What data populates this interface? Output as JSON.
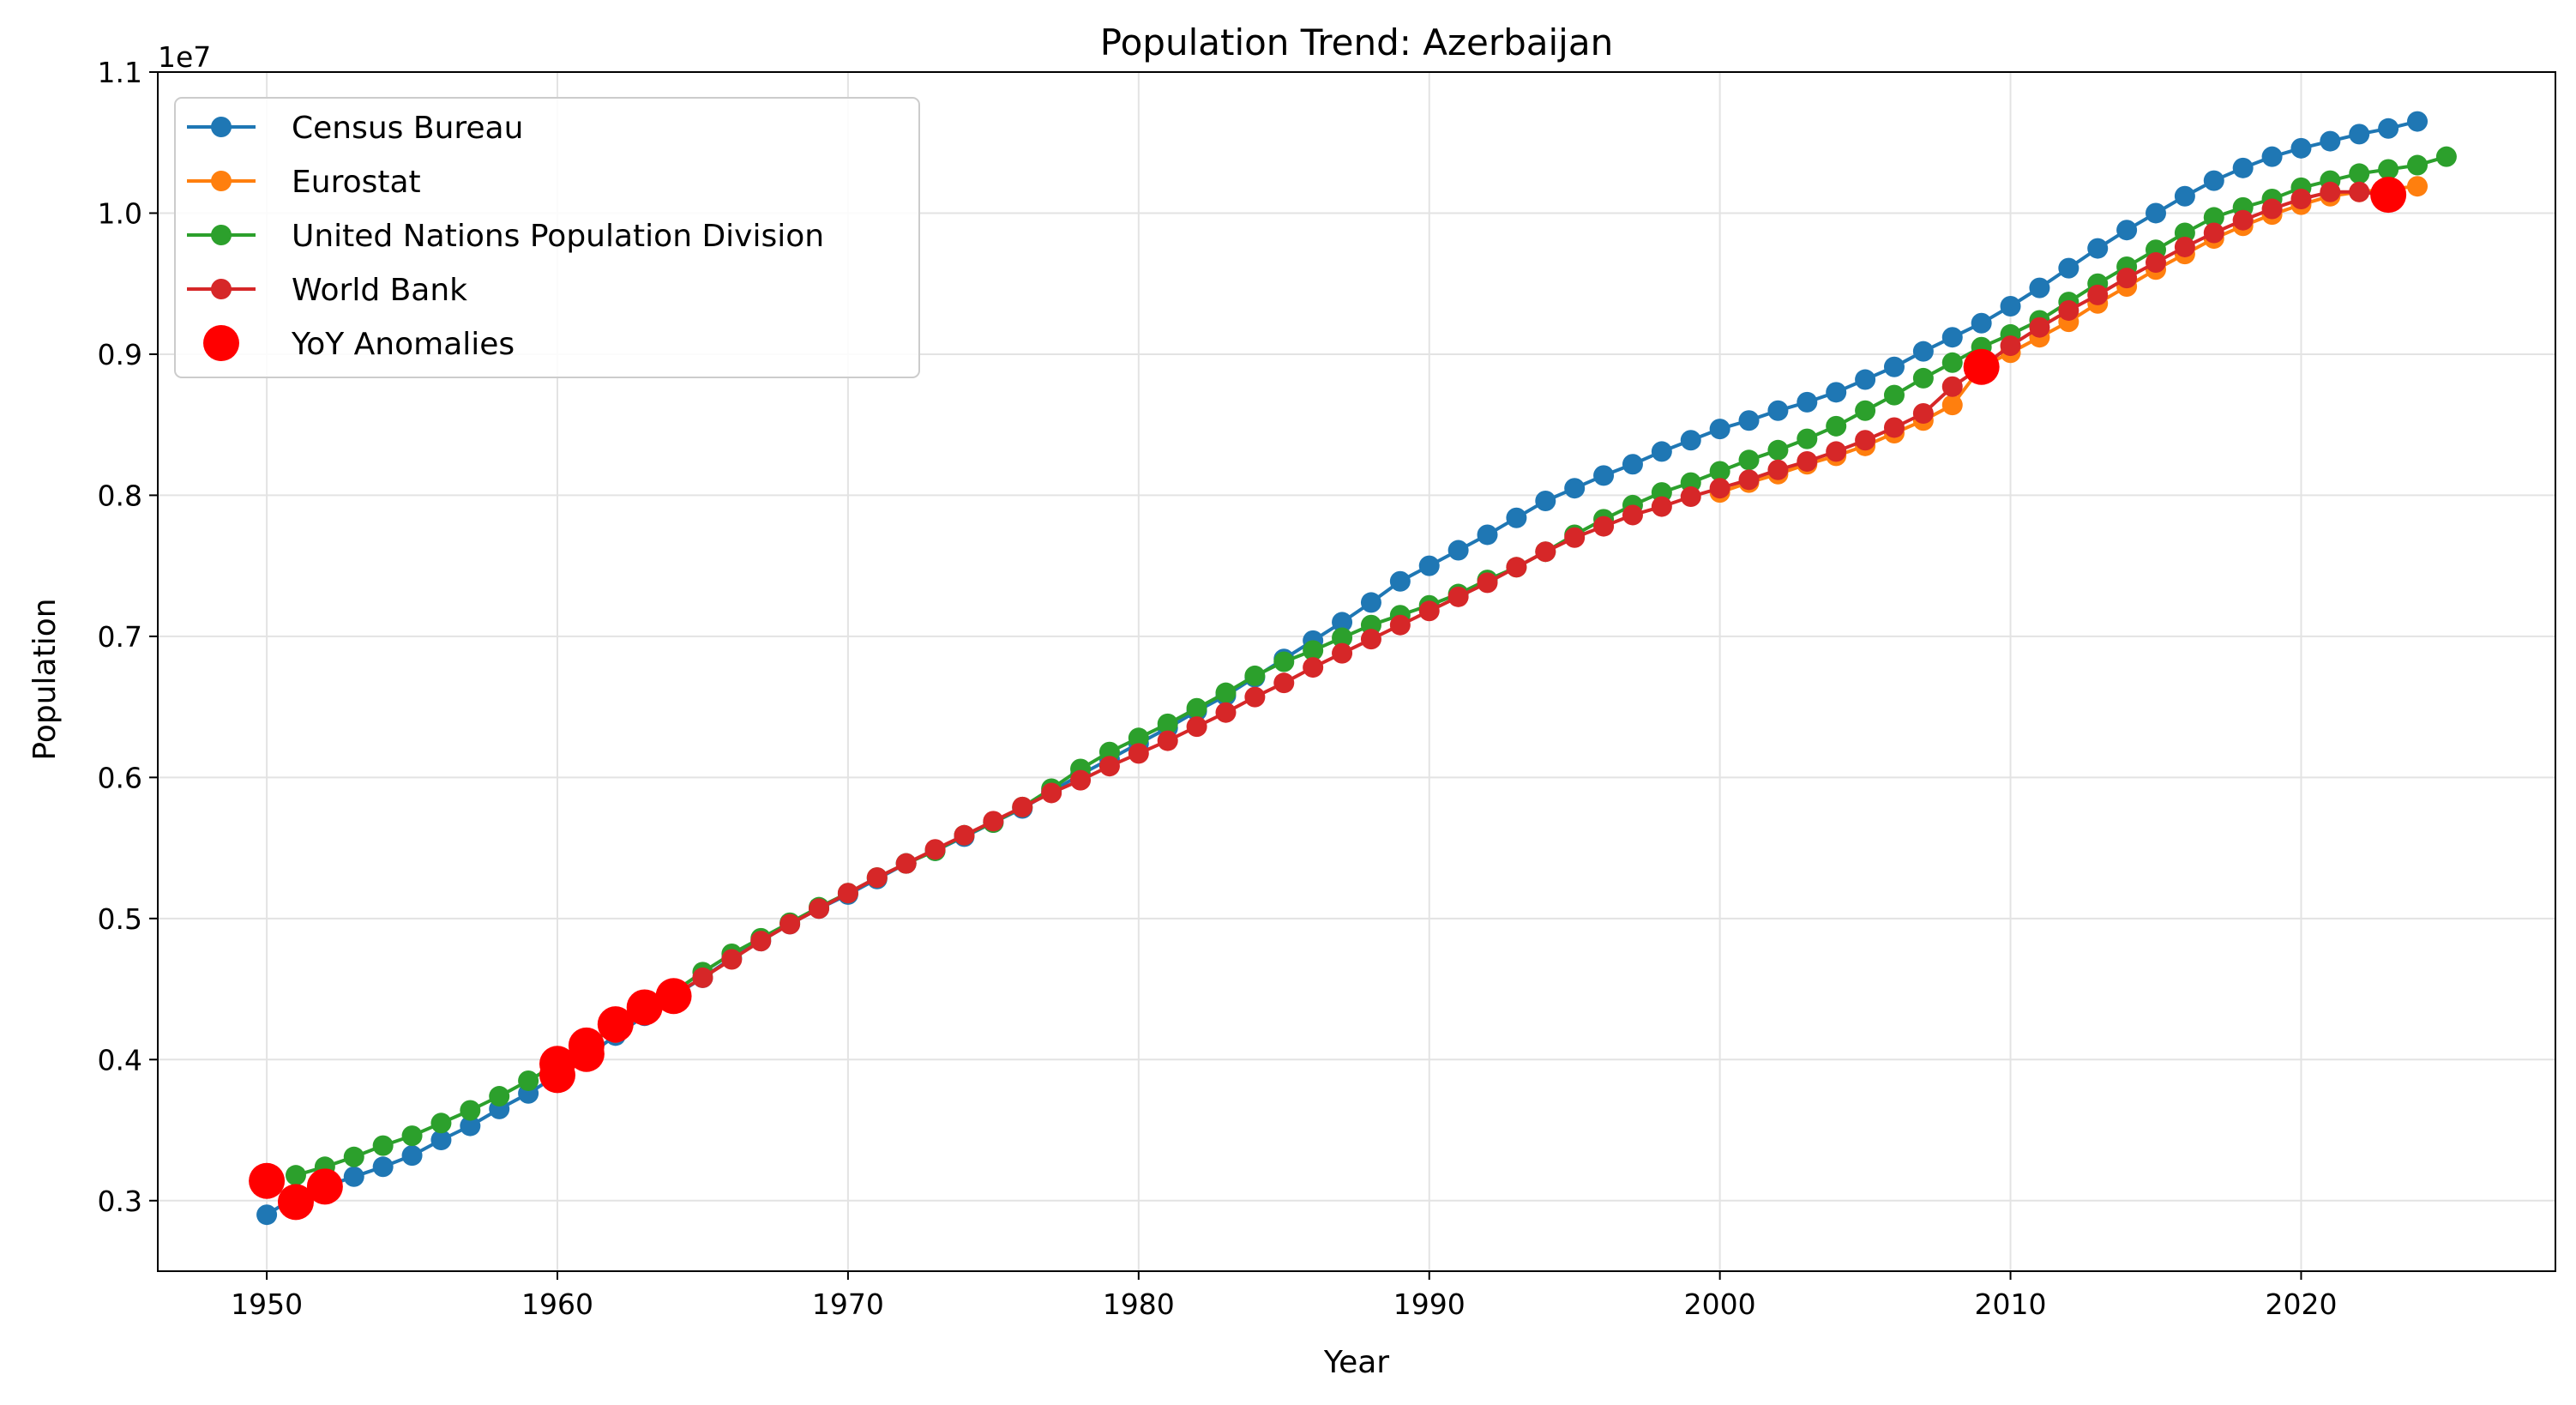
{
  "chart_data": {
    "type": "line",
    "title": "Population Trend: Azerbaijan",
    "xlabel": "Year",
    "ylabel": "Population",
    "y_offset_label": "1e7",
    "xlim": [
      1946.25,
      2028.75
    ],
    "ylim": [
      2.5,
      11.0
    ],
    "x_ticks": [
      1950,
      1960,
      1970,
      1980,
      1990,
      2000,
      2010,
      2020
    ],
    "x_tick_labels": [
      "1950",
      "1960",
      "1970",
      "1980",
      "1990",
      "2000",
      "2010",
      "2020"
    ],
    "y_ticks": [
      3.0,
      4.0,
      5.0,
      6.0,
      7.0,
      8.0,
      9.0,
      10.0,
      11.0
    ],
    "y_tick_labels": [
      "0.3",
      "0.4",
      "0.5",
      "0.6",
      "0.7",
      "0.8",
      "0.9",
      "1.0",
      "1.1"
    ],
    "y_unit_multiplier": 1000000,
    "grid": true,
    "legend_position": "upper-left",
    "series": [
      {
        "name": "Census Bureau",
        "color": "#1f77b4",
        "x": [
          1950,
          1951,
          1952,
          1953,
          1954,
          1955,
          1956,
          1957,
          1958,
          1959,
          1960,
          1961,
          1962,
          1963,
          1964,
          1965,
          1966,
          1967,
          1968,
          1969,
          1970,
          1971,
          1972,
          1973,
          1974,
          1975,
          1976,
          1977,
          1978,
          1979,
          1980,
          1981,
          1982,
          1983,
          1984,
          1985,
          1986,
          1987,
          1988,
          1989,
          1990,
          1991,
          1992,
          1993,
          1994,
          1995,
          1996,
          1997,
          1998,
          1999,
          2000,
          2001,
          2002,
          2003,
          2004,
          2005,
          2006,
          2007,
          2008,
          2009,
          2010,
          2011,
          2012,
          2013,
          2014,
          2015,
          2016,
          2017,
          2018,
          2019,
          2020,
          2021,
          2022,
          2023,
          2024
        ],
        "y": [
          2.9,
          3.03,
          3.1,
          3.17,
          3.24,
          3.32,
          3.43,
          3.53,
          3.65,
          3.76,
          3.89,
          4.02,
          4.17,
          4.31,
          4.45,
          4.58,
          4.72,
          4.84,
          4.96,
          5.07,
          5.17,
          5.28,
          5.39,
          5.48,
          5.58,
          5.68,
          5.78,
          5.9,
          6.02,
          6.13,
          6.24,
          6.35,
          6.47,
          6.58,
          6.71,
          6.84,
          6.97,
          7.1,
          7.24,
          7.39,
          7.5,
          7.61,
          7.72,
          7.84,
          7.96,
          8.05,
          8.14,
          8.22,
          8.31,
          8.39,
          8.47,
          8.53,
          8.6,
          8.66,
          8.73,
          8.82,
          8.91,
          9.02,
          9.12,
          9.22,
          9.34,
          9.47,
          9.61,
          9.75,
          9.88,
          10.0,
          10.12,
          10.23,
          10.32,
          10.4,
          10.46,
          10.51,
          10.56,
          10.6,
          10.65
        ]
      },
      {
        "name": "Eurostat",
        "color": "#ff7f0e",
        "x": [
          2000,
          2001,
          2002,
          2003,
          2004,
          2005,
          2006,
          2007,
          2008,
          2009,
          2010,
          2011,
          2012,
          2013,
          2014,
          2015,
          2016,
          2017,
          2018,
          2019,
          2020,
          2021,
          2022,
          2023,
          2024
        ],
        "y": [
          8.02,
          8.09,
          8.15,
          8.22,
          8.28,
          8.35,
          8.44,
          8.53,
          8.64,
          8.91,
          9.01,
          9.12,
          9.23,
          9.36,
          9.48,
          9.6,
          9.71,
          9.82,
          9.91,
          9.99,
          10.06,
          10.12,
          10.15,
          10.17,
          10.19
        ]
      },
      {
        "name": "United Nations Population Division",
        "color": "#2ca02c",
        "x": [
          1951,
          1952,
          1953,
          1954,
          1955,
          1956,
          1957,
          1958,
          1959,
          1960,
          1961,
          1962,
          1963,
          1964,
          1965,
          1966,
          1967,
          1968,
          1969,
          1970,
          1971,
          1972,
          1973,
          1974,
          1975,
          1976,
          1977,
          1978,
          1979,
          1980,
          1981,
          1982,
          1983,
          1984,
          1985,
          1986,
          1987,
          1988,
          1989,
          1990,
          1991,
          1992,
          1993,
          1994,
          1995,
          1996,
          1997,
          1998,
          1999,
          2000,
          2001,
          2002,
          2003,
          2004,
          2005,
          2006,
          2007,
          2008,
          2009,
          2010,
          2011,
          2012,
          2013,
          2014,
          2015,
          2016,
          2017,
          2018,
          2019,
          2020,
          2021,
          2022,
          2023,
          2024,
          2025
        ],
        "y": [
          3.18,
          3.24,
          3.31,
          3.39,
          3.46,
          3.55,
          3.64,
          3.74,
          3.85,
          3.97,
          4.1,
          4.23,
          4.36,
          4.48,
          4.62,
          4.75,
          4.86,
          4.97,
          5.08,
          5.18,
          5.29,
          5.39,
          5.48,
          5.59,
          5.68,
          5.79,
          5.92,
          6.06,
          6.18,
          6.28,
          6.38,
          6.49,
          6.6,
          6.72,
          6.82,
          6.9,
          6.99,
          7.08,
          7.15,
          7.22,
          7.3,
          7.4,
          7.49,
          7.6,
          7.72,
          7.83,
          7.93,
          8.02,
          8.09,
          8.17,
          8.25,
          8.32,
          8.4,
          8.49,
          8.6,
          8.71,
          8.83,
          8.94,
          9.05,
          9.14,
          9.24,
          9.37,
          9.5,
          9.62,
          9.74,
          9.86,
          9.97,
          10.04,
          10.1,
          10.18,
          10.23,
          10.28,
          10.31,
          10.34,
          10.4
        ]
      },
      {
        "name": "World Bank",
        "color": "#d62728",
        "x": [
          1962,
          1963,
          1964,
          1965,
          1966,
          1967,
          1968,
          1969,
          1970,
          1971,
          1972,
          1973,
          1974,
          1975,
          1976,
          1977,
          1978,
          1979,
          1980,
          1981,
          1982,
          1983,
          1984,
          1985,
          1986,
          1987,
          1988,
          1989,
          1990,
          1991,
          1992,
          1993,
          1994,
          1995,
          1996,
          1997,
          1998,
          1999,
          2000,
          2001,
          2002,
          2003,
          2004,
          2005,
          2006,
          2007,
          2008,
          2009,
          2010,
          2011,
          2012,
          2013,
          2014,
          2015,
          2016,
          2017,
          2018,
          2019,
          2020,
          2021,
          2022,
          2023
        ],
        "y": [
          4.19,
          4.33,
          4.46,
          4.58,
          4.71,
          4.84,
          4.96,
          5.07,
          5.18,
          5.29,
          5.39,
          5.49,
          5.59,
          5.69,
          5.79,
          5.89,
          5.98,
          6.08,
          6.17,
          6.26,
          6.36,
          6.46,
          6.57,
          6.67,
          6.78,
          6.88,
          6.98,
          7.08,
          7.18,
          7.28,
          7.38,
          7.49,
          7.6,
          7.7,
          7.78,
          7.86,
          7.92,
          7.99,
          8.05,
          8.11,
          8.18,
          8.24,
          8.31,
          8.39,
          8.48,
          8.58,
          8.77,
          8.91,
          9.06,
          9.19,
          9.31,
          9.42,
          9.54,
          9.65,
          9.76,
          9.86,
          9.95,
          10.03,
          10.1,
          10.15,
          10.15,
          10.13
        ]
      }
    ],
    "anomalies": {
      "name": "YoY Anomalies",
      "color": "#ff0000",
      "x": [
        1950,
        1951,
        1952,
        1960,
        1960,
        1961,
        1961,
        1962,
        1963,
        1964,
        2009,
        2023
      ],
      "y": [
        3.14,
        2.99,
        3.1,
        3.97,
        3.89,
        4.1,
        4.04,
        4.25,
        4.37,
        4.45,
        8.91,
        10.13
      ]
    }
  }
}
